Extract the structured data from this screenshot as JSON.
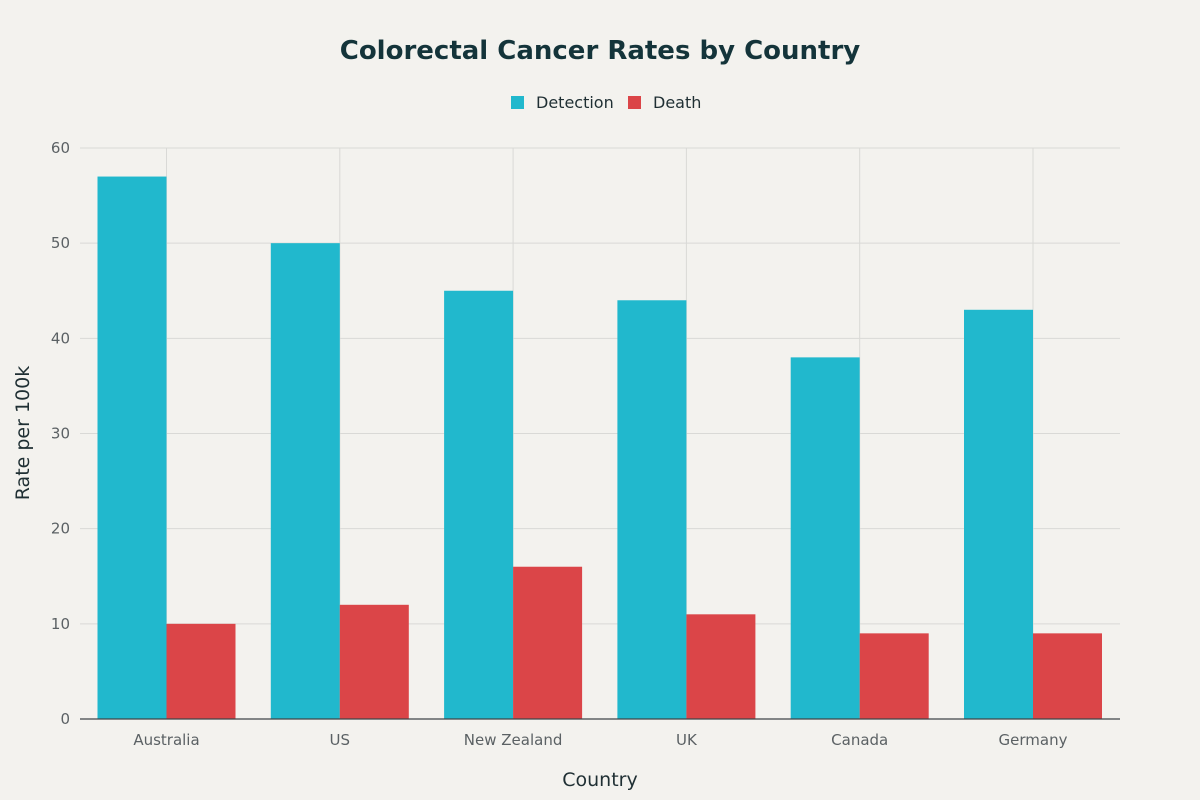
{
  "chart_data": {
    "type": "bar",
    "title": "Colorectal Cancer Rates by Country",
    "xlabel": "Country",
    "ylabel": "Rate per 100k",
    "categories": [
      "Australia",
      "US",
      "New Zealand",
      "UK",
      "Canada",
      "Germany"
    ],
    "series": [
      {
        "name": "Detection",
        "color": "#21b8cd",
        "values": [
          57,
          50,
          45,
          44,
          38,
          43
        ]
      },
      {
        "name": "Death",
        "color": "#db4548",
        "values": [
          10,
          12,
          16,
          11,
          9,
          9
        ]
      }
    ],
    "ylim": [
      0,
      60
    ],
    "yticks": [
      0,
      10,
      20,
      30,
      40,
      50,
      60
    ],
    "grid": true,
    "legend_position": "top-center"
  }
}
